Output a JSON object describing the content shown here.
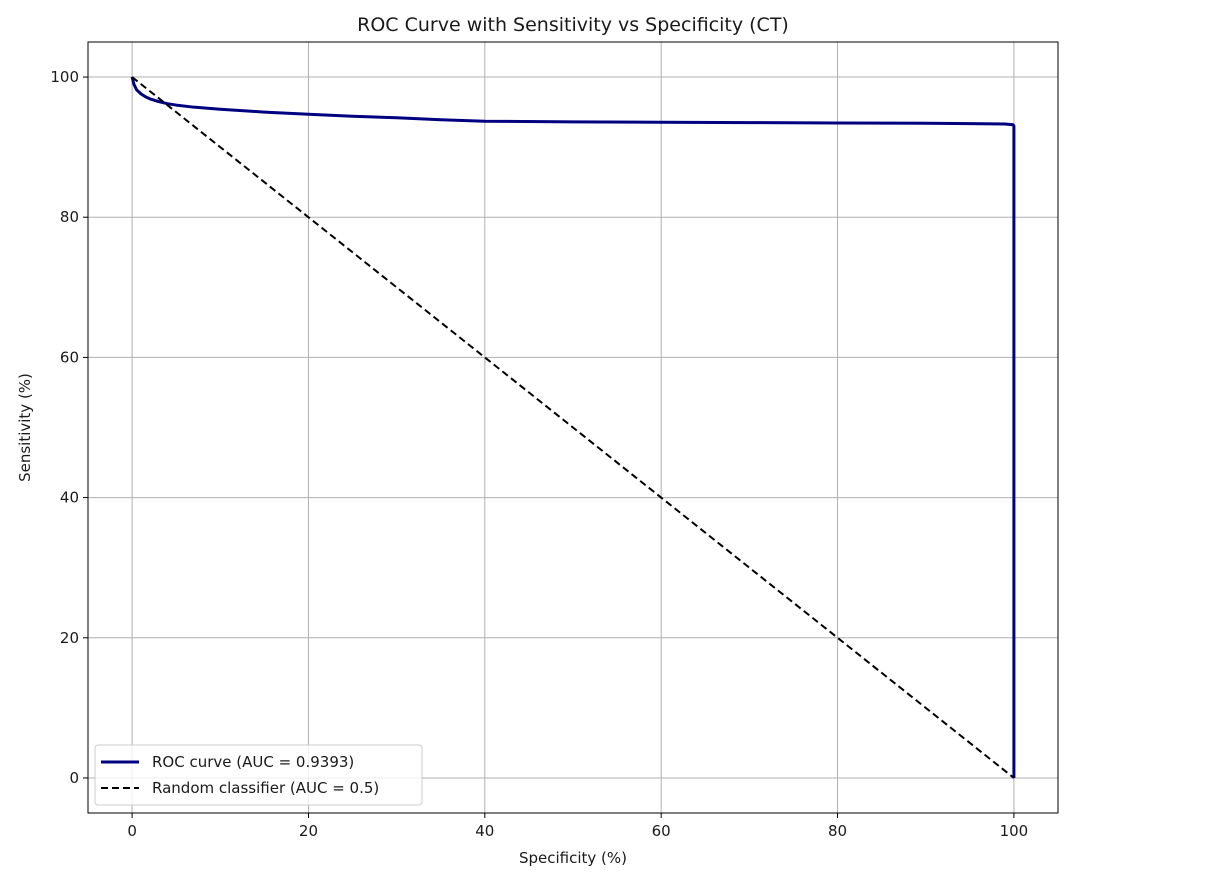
{
  "chart_data": {
    "type": "line",
    "title": "ROC Curve with Sensitivity vs Specificity (CT)",
    "xlabel": "Specificity (%)",
    "ylabel": "Sensitivity (%)",
    "xlim": [
      -5,
      105
    ],
    "ylim": [
      -5,
      105
    ],
    "xticks": [
      0,
      20,
      40,
      60,
      80,
      100
    ],
    "yticks": [
      0,
      20,
      40,
      60,
      80,
      100
    ],
    "grid": true,
    "legend_position": "lower-left",
    "series": [
      {
        "name": "ROC curve (AUC = 0.9393)",
        "color": "#000080",
        "style": "solid",
        "x": [
          0,
          0.2,
          0.5,
          1,
          1.5,
          2,
          3,
          4,
          5,
          7,
          10,
          15,
          20,
          25,
          30,
          35,
          40,
          50,
          60,
          70,
          80,
          90,
          95,
          99,
          99.9,
          100,
          100
        ],
        "y": [
          100,
          99.0,
          98.2,
          97.6,
          97.2,
          96.9,
          96.5,
          96.2,
          96.0,
          95.7,
          95.4,
          95.0,
          94.7,
          94.4,
          94.2,
          93.9,
          93.7,
          93.6,
          93.55,
          93.5,
          93.45,
          93.4,
          93.35,
          93.3,
          93.2,
          93.0,
          0
        ]
      },
      {
        "name": "Random classifier (AUC = 0.5)",
        "color": "#000000",
        "style": "dashed",
        "x": [
          0,
          100
        ],
        "y": [
          100,
          0
        ]
      }
    ]
  }
}
